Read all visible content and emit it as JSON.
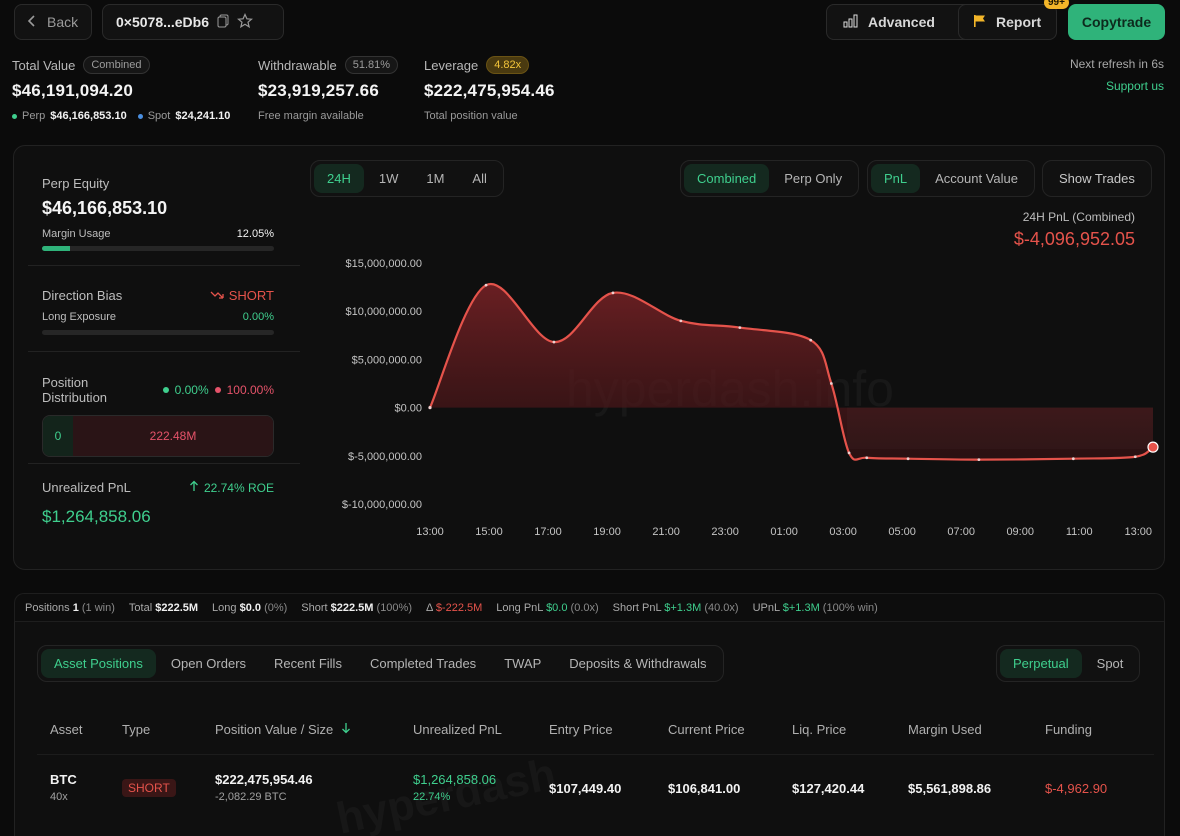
{
  "header": {
    "back_label": "Back",
    "address": "0×5078...eDb6",
    "advanced_label": "Advanced",
    "report_label": "Report",
    "report_badge": "99+",
    "copytrade_label": "Copytrade"
  },
  "stats": {
    "total_value": {
      "label": "Total Value",
      "pill": "Combined",
      "value": "$46,191,094.20",
      "perp_label": "Perp",
      "perp_value": "$46,166,853.10",
      "spot_label": "Spot",
      "spot_value": "$24,241.10"
    },
    "withdrawable": {
      "label": "Withdrawable",
      "pill": "51.81%",
      "value": "$23,919,257.66",
      "sub": "Free margin available"
    },
    "leverage": {
      "label": "Leverage",
      "pill": "4.82x",
      "value": "$222,475,954.46",
      "sub": "Total position value"
    },
    "refresh": "Next refresh in 6s",
    "support": "Support us"
  },
  "side": {
    "perp_equity_label": "Perp Equity",
    "perp_equity": "$46,166,853.10",
    "margin_usage_label": "Margin Usage",
    "margin_usage": "12.05%",
    "margin_usage_fraction": 0.1205,
    "direction_label": "Direction Bias",
    "direction_value": "SHORT",
    "long_exposure_label": "Long Exposure",
    "long_exposure": "0.00%",
    "long_exposure_fraction": 0.0,
    "pos_dist_label": "Position Distribution",
    "pos_dist_long": "0.00%",
    "pos_dist_short": "100.00%",
    "dist_long_value": "0",
    "dist_short_value": "222.48M",
    "upnl_label": "Unrealized PnL",
    "upnl_roe": "22.74% ROE",
    "upnl_value": "$1,264,858.06"
  },
  "chart_controls": {
    "ranges": [
      "24H",
      "1W",
      "1M",
      "All"
    ],
    "active_range": "24H",
    "modes": [
      "Combined",
      "Perp Only"
    ],
    "active_mode": "Combined",
    "metrics": [
      "PnL",
      "Account Value"
    ],
    "active_metric": "PnL",
    "show_trades": "Show Trades"
  },
  "chart_data": {
    "type": "area",
    "title": "24H PnL (Combined)",
    "headline_value": "$-4,096,952.05",
    "watermark": "hyperdash.info",
    "x": [
      "13:00",
      "15:00",
      "17:00",
      "19:00",
      "21:00",
      "23:00",
      "01:00",
      "03:00",
      "05:00",
      "07:00",
      "09:00",
      "11:00",
      "13:00"
    ],
    "y_ticks": [
      "$15,000,000.00",
      "$10,000,000.00",
      "$5,000,000.00",
      "$0.00",
      "$-5,000,000.00",
      "$-10,000,000.00"
    ],
    "ylim": [
      -10000000,
      15000000
    ],
    "points": [
      {
        "t": 0.0,
        "v": 0
      },
      {
        "t": 1.9,
        "v": 12700000
      },
      {
        "t": 4.2,
        "v": 6800000
      },
      {
        "t": 6.2,
        "v": 11900000
      },
      {
        "t": 8.5,
        "v": 9000000
      },
      {
        "t": 10.5,
        "v": 8300000
      },
      {
        "t": 12.9,
        "v": 7000000
      },
      {
        "t": 13.6,
        "v": 2500000
      },
      {
        "t": 14.2,
        "v": -4700000
      },
      {
        "t": 14.8,
        "v": -5200000
      },
      {
        "t": 16.2,
        "v": -5300000
      },
      {
        "t": 18.6,
        "v": -5400000
      },
      {
        "t": 21.8,
        "v": -5300000
      },
      {
        "t": 23.9,
        "v": -5100000
      },
      {
        "t": 24.5,
        "v": -4100000
      }
    ],
    "line_color": "#e5534b",
    "t_max": 24.5
  },
  "summary": {
    "positions_label": "Positions",
    "positions": "1",
    "positions_win": "(1 win)",
    "total_label": "Total",
    "total": "$222.5M",
    "long_label": "Long",
    "long": "$0.0",
    "long_pct": "(0%)",
    "short_label": "Short",
    "short": "$222.5M",
    "short_pct": "(100%)",
    "delta_label": "Δ",
    "delta": "$-222.5M",
    "long_pnl_label": "Long PnL",
    "long_pnl": "$0.0",
    "long_pnl_x": "(0.0x)",
    "short_pnl_label": "Short PnL",
    "short_pnl": "$+1.3M",
    "short_pnl_x": "(40.0x)",
    "upnl_label": "UPnL",
    "upnl": "$+1.3M",
    "upnl_win": "(100% win)"
  },
  "tabs": {
    "items": [
      "Asset Positions",
      "Open Orders",
      "Recent Fills",
      "Completed Trades",
      "TWAP",
      "Deposits & Withdrawals"
    ],
    "active": "Asset Positions",
    "market": [
      "Perpetual",
      "Spot"
    ],
    "active_market": "Perpetual"
  },
  "table": {
    "headers": [
      "Asset",
      "Type",
      "Position Value / Size",
      "Unrealized PnL",
      "Entry Price",
      "Current Price",
      "Liq. Price",
      "Margin Used",
      "Funding"
    ],
    "sort_icon": "arrow-down-icon",
    "watermark": "hyperdash",
    "rows": [
      {
        "asset": "BTC",
        "leverage": "40x",
        "type": "SHORT",
        "value": "$222,475,954.46",
        "size": "-2,082.29 BTC",
        "upnl": "$1,264,858.06",
        "upnl_pct": "22.74%",
        "entry": "$107,449.40",
        "current": "$106,841.00",
        "liq": "$127,420.44",
        "margin": "$5,561,898.86",
        "funding": "$-4,962.90"
      }
    ]
  }
}
